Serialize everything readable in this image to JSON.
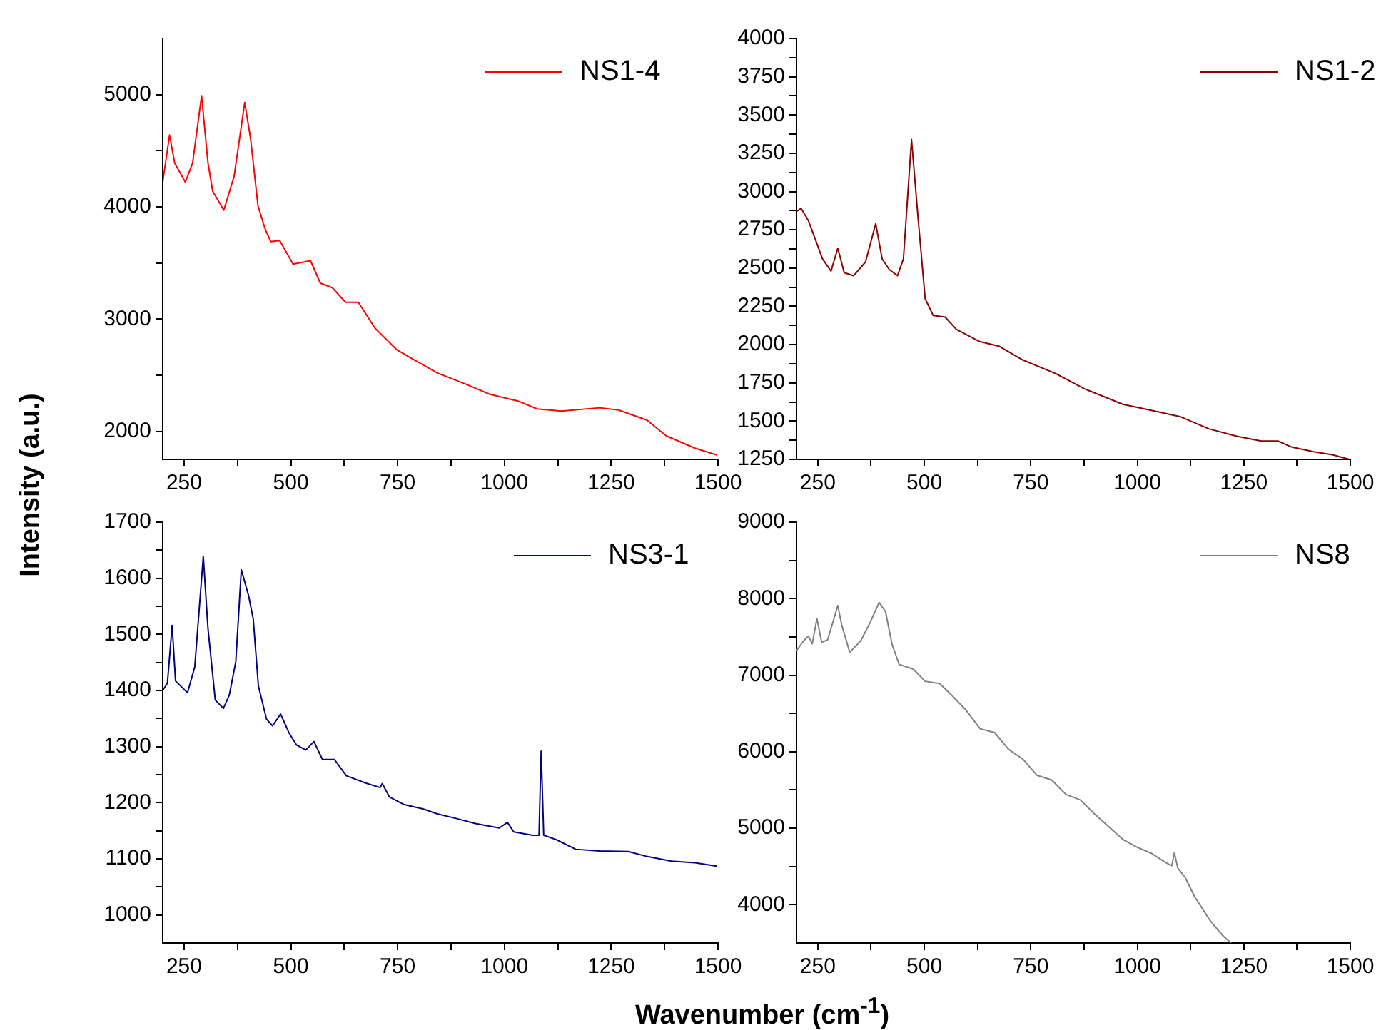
{
  "chart_data": [
    {
      "type": "line",
      "ylabel": "Intensity (a.u.)",
      "legend": "top right",
      "marker": "none",
      "xlim": [
        200,
        1500
      ],
      "xticks": [
        250,
        {
          "value": 375,
          "label": null
        },
        500,
        {
          "value": 625,
          "label": null
        },
        750,
        {
          "value": 875,
          "label": null
        },
        1000,
        {
          "value": 1125,
          "label": null
        },
        1250,
        {
          "value": 1375,
          "label": null
        },
        1500
      ],
      "ylim": [
        1750,
        5500
      ],
      "yticks": [
        2000,
        {
          "value": 2500,
          "label": null
        },
        3000,
        {
          "value": 3500,
          "label": null
        },
        4000,
        {
          "value": 4500,
          "label": null
        },
        5000
      ],
      "series": [
        {
          "name": "NS1-4",
          "color": "#ff0000",
          "x": [
            200,
            216,
            228,
            253,
            270,
            291,
            306,
            317,
            343,
            367,
            392,
            406,
            423,
            440,
            453,
            474,
            505,
            546,
            569,
            597,
            628,
            658,
            697,
            747,
            792,
            843,
            910,
            966,
            1032,
            1077,
            1133,
            1223,
            1267,
            1334,
            1379,
            1446,
            1497
          ],
          "values": [
            4220,
            4640,
            4390,
            4220,
            4390,
            4990,
            4390,
            4140,
            3970,
            4270,
            4930,
            4600,
            4010,
            3800,
            3690,
            3700,
            3490,
            3520,
            3320,
            3280,
            3150,
            3150,
            2920,
            2730,
            2630,
            2520,
            2420,
            2330,
            2270,
            2200,
            2180,
            2210,
            2190,
            2100,
            1960,
            1850,
            1790
          ]
        }
      ]
    },
    {
      "type": "line",
      "legend": "top right",
      "marker": "none",
      "xlim": [
        200,
        1500
      ],
      "xticks": [
        250,
        {
          "value": 375,
          "label": null
        },
        500,
        {
          "value": 625,
          "label": null
        },
        750,
        {
          "value": 875,
          "label": null
        },
        1000,
        {
          "value": 1125,
          "label": null
        },
        1250,
        {
          "value": 1375,
          "label": null
        },
        1500
      ],
      "ylim": [
        1250,
        4000
      ],
      "yticks": [
        1250,
        {
          "value": 1375,
          "label": null
        },
        1500,
        {
          "value": 1625,
          "label": null
        },
        1750,
        {
          "value": 1875,
          "label": null
        },
        2000,
        {
          "value": 2125,
          "label": null
        },
        2250,
        {
          "value": 2375,
          "label": null
        },
        2500,
        {
          "value": 2625,
          "label": null
        },
        2750,
        {
          "value": 2875,
          "label": null
        },
        3000,
        {
          "value": 3125,
          "label": null
        },
        3250,
        {
          "value": 3375,
          "label": null
        },
        3500,
        {
          "value": 3625,
          "label": null
        },
        3750,
        {
          "value": 3875,
          "label": null
        },
        4000
      ],
      "series": [
        {
          "name": "NS1-2",
          "color": "#8b0000",
          "x": [
            200,
            211,
            228,
            244,
            261,
            281,
            297,
            312,
            334,
            362,
            386,
            401,
            418,
            437,
            451,
            470,
            485,
            502,
            521,
            549,
            575,
            630,
            675,
            731,
            809,
            877,
            966,
            1033,
            1100,
            1168,
            1235,
            1291,
            1330,
            1363,
            1414,
            1458,
            1498
          ],
          "values": [
            2870,
            2890,
            2810,
            2690,
            2560,
            2480,
            2630,
            2470,
            2450,
            2540,
            2790,
            2560,
            2490,
            2450,
            2560,
            3340,
            2840,
            2300,
            2190,
            2180,
            2100,
            2020,
            1990,
            1900,
            1810,
            1710,
            1610,
            1570,
            1530,
            1450,
            1400,
            1370,
            1370,
            1330,
            1300,
            1280,
            1250
          ]
        }
      ]
    },
    {
      "type": "line",
      "xlabel": "Wavenumber (cm$^{-1}$)",
      "legend": "top right",
      "marker": "none",
      "xlim": [
        200,
        1500
      ],
      "xticks": [
        250,
        {
          "value": 375,
          "label": null
        },
        500,
        {
          "value": 625,
          "label": null
        },
        750,
        {
          "value": 875,
          "label": null
        },
        1000,
        {
          "value": 1125,
          "label": null
        },
        1250,
        {
          "value": 1375,
          "label": null
        },
        1500
      ],
      "ylim": [
        950,
        1700
      ],
      "yticks": [
        1000,
        {
          "value": 1050,
          "label": null
        },
        1100,
        {
          "value": 1150,
          "label": null
        },
        1200,
        {
          "value": 1250,
          "label": null
        },
        1300,
        {
          "value": 1350,
          "label": null
        },
        1400,
        {
          "value": 1450,
          "label": null
        },
        1500,
        {
          "value": 1550,
          "label": null
        },
        1600,
        {
          "value": 1650,
          "label": null
        },
        1700
      ],
      "series": [
        {
          "name": "NS3-1",
          "color": "#000080",
          "x": [
            200,
            211,
            222,
            230,
            258,
            275,
            295,
            306,
            323,
            342,
            356,
            371,
            384,
            401,
            412,
            424,
            443,
            457,
            476,
            496,
            513,
            535,
            554,
            574,
            602,
            630,
            675,
            709,
            714,
            731,
            764,
            809,
            843,
            887,
            932,
            988,
            1007,
            1022,
            1066,
            1081,
            1086,
            1092,
            1122,
            1167,
            1223,
            1290,
            1335,
            1391,
            1446,
            1497
          ],
          "values": [
            1400,
            1413,
            1516,
            1417,
            1396,
            1442,
            1639,
            1510,
            1383,
            1368,
            1392,
            1451,
            1615,
            1569,
            1527,
            1408,
            1349,
            1337,
            1358,
            1324,
            1303,
            1294,
            1309,
            1277,
            1277,
            1248,
            1235,
            1227,
            1234,
            1210,
            1197,
            1189,
            1180,
            1172,
            1163,
            1155,
            1165,
            1148,
            1142,
            1142,
            1292,
            1142,
            1134,
            1117,
            1114,
            1113,
            1104,
            1096,
            1093,
            1087
          ]
        }
      ]
    },
    {
      "type": "line",
      "legend": "top right",
      "marker": "none",
      "xlim": [
        200,
        1500
      ],
      "xticks": [
        250,
        {
          "value": 375,
          "label": null
        },
        500,
        {
          "value": 625,
          "label": null
        },
        750,
        {
          "value": 875,
          "label": null
        },
        1000,
        {
          "value": 1125,
          "label": null
        },
        1250,
        {
          "value": 1375,
          "label": null
        },
        1500
      ],
      "ylim": [
        3500,
        9000
      ],
      "yticks": [
        4000,
        {
          "value": 4500,
          "label": null
        },
        5000,
        {
          "value": 5500,
          "label": null
        },
        6000,
        {
          "value": 6500,
          "label": null
        },
        7000,
        {
          "value": 7500,
          "label": null
        },
        8000,
        {
          "value": 8500,
          "label": null
        },
        9000
      ],
      "series": [
        {
          "name": "NS8",
          "color": "#808080",
          "x": [
            200,
            217,
            228,
            237,
            248,
            259,
            273,
            297,
            306,
            325,
            351,
            373,
            394,
            409,
            424,
            441,
            474,
            502,
            536,
            564,
            597,
            631,
            665,
            698,
            732,
            765,
            799,
            833,
            866,
            899,
            933,
            967,
            1000,
            1034,
            1067,
            1081,
            1087,
            1095,
            1112,
            1134,
            1170,
            1200,
            1220
          ],
          "values": [
            7320,
            7450,
            7510,
            7410,
            7740,
            7430,
            7460,
            7910,
            7660,
            7300,
            7450,
            7690,
            7950,
            7830,
            7410,
            7140,
            7080,
            6920,
            6890,
            6740,
            6550,
            6300,
            6250,
            6030,
            5900,
            5690,
            5630,
            5440,
            5370,
            5190,
            5020,
            4850,
            4750,
            4670,
            4550,
            4510,
            4680,
            4480,
            4360,
            4110,
            3800,
            3600,
            3500
          ]
        }
      ]
    }
  ]
}
